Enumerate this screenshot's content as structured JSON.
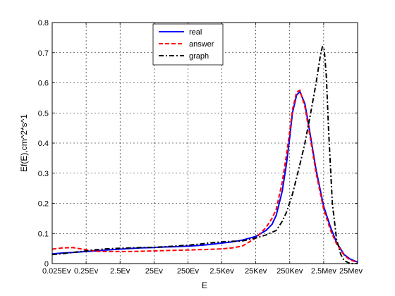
{
  "chart_data": {
    "type": "line",
    "xlabel": "E",
    "ylabel": "Ef(E),cm^2*s^1",
    "x_tick_labels": [
      "0.025Ev",
      "0.25Ev",
      "2.5Ev",
      "25Ev",
      "250Ev",
      "2.5Kev",
      "25Kev",
      "250Kev",
      "2.5Mev",
      "25Mev"
    ],
    "x_axis_scale": "log",
    "x_tick_energies_ev": [
      0.025,
      0.25,
      2.5,
      25,
      250,
      2500,
      25000,
      250000,
      2500000,
      25000000
    ],
    "ylim": [
      0,
      0.8
    ],
    "y_ticks": [
      0,
      0.1,
      0.2,
      0.3,
      0.4,
      0.5,
      0.6,
      0.7,
      0.8
    ],
    "grid": true,
    "legend_position": "top-center",
    "series": [
      {
        "name": "real",
        "color": "#0000ff",
        "dash": "solid",
        "x": [
          0.025,
          0.05,
          0.1,
          0.25,
          0.5,
          1,
          2.5,
          5,
          10,
          25,
          50,
          100,
          250,
          500,
          1000,
          2500,
          5000,
          10000,
          25000,
          50000,
          75000,
          100000,
          150000,
          200000,
          250000,
          300000,
          400000,
          500000,
          700000,
          1000000,
          1500000,
          2500000,
          4000000,
          6000000,
          10000000,
          15000000,
          25000000
        ],
        "y": [
          0.032,
          0.035,
          0.037,
          0.04,
          0.042,
          0.045,
          0.048,
          0.05,
          0.052,
          0.053,
          0.055,
          0.056,
          0.058,
          0.06,
          0.063,
          0.068,
          0.072,
          0.078,
          0.09,
          0.11,
          0.13,
          0.16,
          0.24,
          0.33,
          0.42,
          0.5,
          0.56,
          0.57,
          0.53,
          0.43,
          0.31,
          0.19,
          0.12,
          0.07,
          0.03,
          0.015,
          0.005
        ]
      },
      {
        "name": "answer",
        "color": "#ff0000",
        "dash": "dashed",
        "x": [
          0.025,
          0.05,
          0.1,
          0.25,
          0.5,
          1,
          2.5,
          5,
          10,
          25,
          50,
          100,
          250,
          500,
          1000,
          2500,
          5000,
          10000,
          25000,
          50000,
          75000,
          100000,
          150000,
          200000,
          250000,
          300000,
          400000,
          500000,
          700000,
          1000000,
          1500000,
          2500000,
          4000000,
          6000000,
          10000000,
          15000000,
          25000000
        ],
        "y": [
          0.048,
          0.052,
          0.053,
          0.046,
          0.041,
          0.04,
          0.04,
          0.04,
          0.041,
          0.042,
          0.043,
          0.044,
          0.045,
          0.046,
          0.047,
          0.049,
          0.052,
          0.058,
          0.085,
          0.12,
          0.15,
          0.18,
          0.27,
          0.36,
          0.44,
          0.51,
          0.57,
          0.575,
          0.52,
          0.42,
          0.3,
          0.18,
          0.11,
          0.065,
          0.028,
          0.012,
          0.004
        ]
      },
      {
        "name": "graph",
        "color": "#000000",
        "dash": "dashdot",
        "x": [
          0.025,
          0.05,
          0.1,
          0.25,
          0.5,
          1,
          2.5,
          5,
          10,
          25,
          50,
          100,
          250,
          500,
          1000,
          2500,
          5000,
          10000,
          25000,
          50000,
          100000,
          150000,
          200000,
          300000,
          500000,
          700000,
          1000000,
          1500000,
          2000000,
          2300000,
          2600000,
          3000000,
          3500000,
          4500000,
          6000000,
          8000000,
          10000000,
          15000000,
          25000000
        ],
        "y": [
          0.03,
          0.033,
          0.037,
          0.042,
          0.046,
          0.049,
          0.051,
          0.052,
          0.053,
          0.054,
          0.056,
          0.058,
          0.061,
          0.064,
          0.068,
          0.072,
          0.074,
          0.075,
          0.085,
          0.095,
          0.11,
          0.14,
          0.17,
          0.23,
          0.33,
          0.4,
          0.49,
          0.6,
          0.69,
          0.72,
          0.71,
          0.62,
          0.44,
          0.2,
          0.08,
          0.03,
          0.01,
          0.0,
          0.0
        ]
      }
    ]
  }
}
